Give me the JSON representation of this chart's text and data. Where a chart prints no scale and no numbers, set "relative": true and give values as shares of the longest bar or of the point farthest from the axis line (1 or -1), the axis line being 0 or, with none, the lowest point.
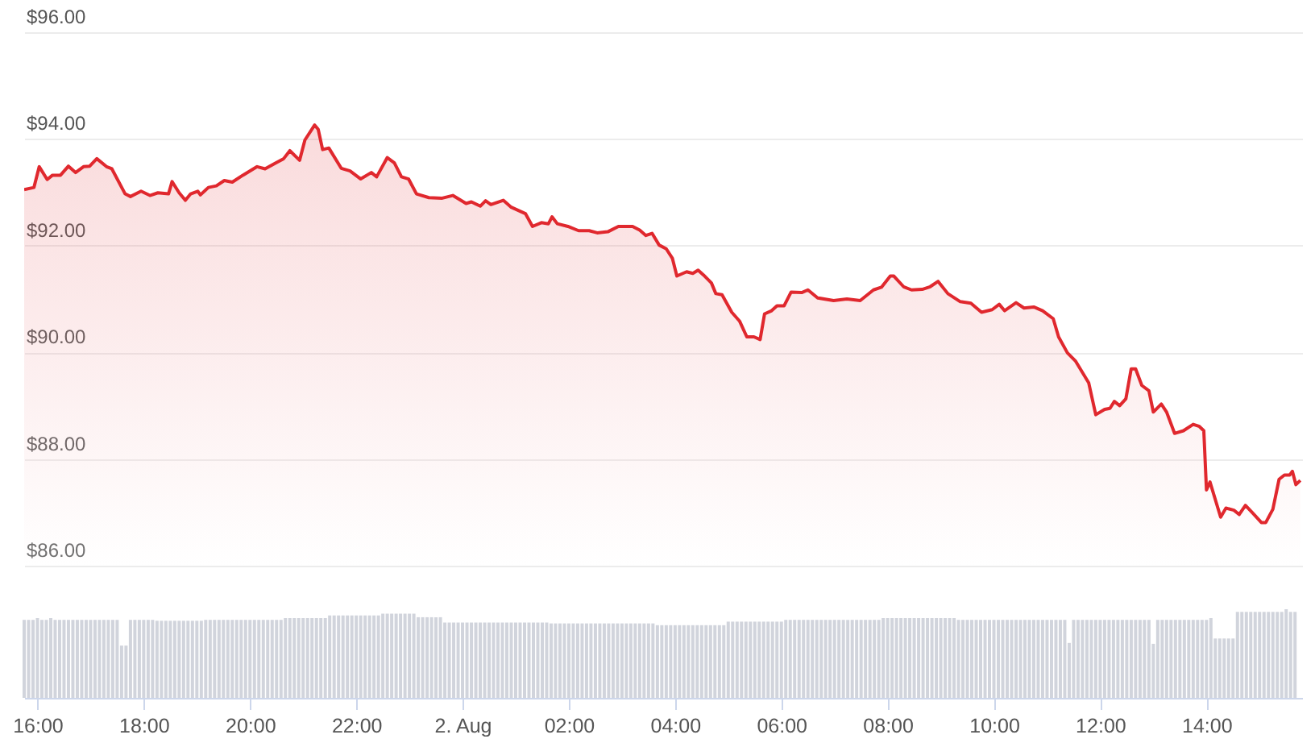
{
  "chart_data": [
    {
      "type": "area",
      "color": "#e0282e",
      "xlim": [
        "--08-01T15:45",
        "--08-02T15:48"
      ],
      "ylim": [
        86,
        96
      ],
      "yticks": [
        {
          "value": 96,
          "label": "$96.00"
        },
        {
          "value": 94,
          "label": "$94.00"
        },
        {
          "value": 92,
          "label": "$92.00"
        },
        {
          "value": 90,
          "label": "$90.00"
        },
        {
          "value": 88,
          "label": "$88.00"
        },
        {
          "value": 86,
          "label": "$86.00"
        }
      ],
      "grid": "y",
      "tick_labels": "y",
      "x": [
        "--08-01T15:45",
        "--08-01T15:56",
        "--08-01T16:02",
        "--08-01T16:11",
        "--08-01T16:17",
        "--08-01T16:26",
        "--08-01T16:35",
        "--08-01T16:43",
        "--08-01T16:52",
        "--08-01T16:59",
        "--08-01T17:07",
        "--08-01T17:18",
        "--08-01T17:24",
        "--08-01T17:39",
        "--08-01T17:45",
        "--08-01T17:57",
        "--08-01T18:07",
        "--08-01T18:16",
        "--08-01T18:28",
        "--08-01T18:32",
        "--08-01T18:40",
        "--08-01T18:47",
        "--08-01T18:53",
        "--08-01T19:01",
        "--08-01T19:04",
        "--08-01T19:13",
        "--08-01T19:22",
        "--08-01T19:31",
        "--08-01T19:40",
        "--08-01T19:52",
        "--08-01T20:08",
        "--08-01T20:17",
        "--08-01T20:29",
        "--08-01T20:38",
        "--08-01T20:45",
        "--08-01T20:56",
        "--08-01T21:02",
        "--08-01T21:13",
        "--08-01T21:17",
        "--08-01T21:22",
        "--08-01T21:29",
        "--08-01T21:43",
        "--08-01T21:53",
        "--08-01T22:05",
        "--08-01T22:17",
        "--08-01T22:23",
        "--08-01T22:35",
        "--08-01T22:43",
        "--08-01T22:51",
        "--08-01T22:59",
        "--08-01T23:08",
        "--08-01T23:22",
        "--08-01T23:37",
        "--08-01T23:49",
        "--08-02T00:04",
        "--08-02T00:10",
        "--08-02T00:20",
        "--08-02T00:26",
        "--08-02T00:32",
        "--08-02T00:46",
        "--08-02T00:55",
        "--08-02T01:11",
        "--08-02T01:19",
        "--08-02T01:29",
        "--08-02T01:37",
        "--08-02T01:41",
        "--08-02T01:47",
        "--08-02T01:59",
        "--08-02T02:11",
        "--08-02T02:23",
        "--08-02T02:32",
        "--08-02T02:44",
        "--08-02T02:56",
        "--08-02T03:12",
        "--08-02T03:20",
        "--08-02T03:27",
        "--08-02T03:34",
        "--08-02T03:42",
        "--08-02T03:50",
        "--08-02T03:57",
        "--08-02T04:02",
        "--08-02T04:13",
        "--08-02T04:20",
        "--08-02T04:26",
        "--08-02T04:32",
        "--08-02T04:41",
        "--08-02T04:46",
        "--08-02T04:53",
        "--08-02T05:04",
        "--08-02T05:13",
        "--08-02T05:21",
        "--08-02T05:29",
        "--08-02T05:36",
        "--08-02T05:41",
        "--08-02T05:49",
        "--08-02T05:55",
        "--08-02T06:03",
        "--08-02T06:11",
        "--08-02T06:23",
        "--08-02T06:30",
        "--08-02T06:41",
        "--08-02T06:59",
        "--08-02T07:14",
        "--08-02T07:29",
        "--08-02T07:44",
        "--08-02T07:53",
        "--08-02T08:03",
        "--08-02T08:07",
        "--08-02T08:18",
        "--08-02T08:27",
        "--08-02T08:39",
        "--08-02T08:48",
        "--08-02T08:57",
        "--08-02T09:08",
        "--08-02T09:22",
        "--08-02T09:34",
        "--08-02T09:46",
        "--08-02T09:58",
        "--08-02T10:06",
        "--08-02T10:12",
        "--08-02T10:25",
        "--08-02T10:34",
        "--08-02T10:45",
        "--08-02T10:55",
        "--08-02T11:07",
        "--08-02T11:13",
        "--08-02T11:23",
        "--08-02T11:32",
        "--08-02T11:47",
        "--08-02T11:55",
        "--08-02T12:05",
        "--08-02T12:11",
        "--08-02T12:16",
        "--08-02T12:22",
        "--08-02T12:29",
        "--08-02T12:35",
        "--08-02T12:40",
        "--08-02T12:47",
        "--08-02T12:55",
        "--08-02T13:00",
        "--08-02T13:09",
        "--08-02T13:15",
        "--08-02T13:24",
        "--08-02T13:34",
        "--08-02T13:45",
        "--08-02T13:52",
        "--08-02T13:57",
        "--08-02T14:00",
        "--08-02T14:04",
        "--08-02T14:16",
        "--08-02T14:22",
        "--08-02T14:31",
        "--08-02T14:37",
        "--08-02T14:44",
        "--08-02T14:52",
        "--08-02T15:02",
        "--08-02T15:07",
        "--08-02T15:15",
        "--08-02T15:22",
        "--08-02T15:28",
        "--08-02T15:34",
        "--08-02T15:37",
        "--08-02T15:41",
        "--08-02T15:46"
      ],
      "values": [
        93.05,
        93.09,
        93.48,
        93.24,
        93.32,
        93.32,
        93.49,
        93.37,
        93.48,
        93.49,
        93.63,
        93.48,
        93.44,
        92.97,
        92.92,
        93.02,
        92.94,
        92.99,
        92.97,
        93.2,
        92.99,
        92.85,
        92.97,
        93.02,
        92.95,
        93.09,
        93.12,
        93.22,
        93.19,
        93.32,
        93.48,
        93.44,
        93.55,
        93.63,
        93.78,
        93.6,
        93.98,
        94.26,
        94.18,
        93.8,
        93.83,
        93.45,
        93.4,
        93.25,
        93.37,
        93.29,
        93.65,
        93.55,
        93.29,
        93.25,
        92.97,
        92.9,
        92.89,
        92.94,
        92.79,
        92.82,
        92.74,
        92.84,
        92.77,
        92.85,
        92.72,
        92.6,
        92.36,
        92.43,
        92.41,
        92.54,
        92.41,
        92.36,
        92.28,
        92.28,
        92.24,
        92.26,
        92.36,
        92.36,
        92.29,
        92.19,
        92.23,
        92.01,
        91.94,
        91.76,
        91.43,
        91.51,
        91.48,
        91.54,
        91.45,
        91.3,
        91.1,
        91.08,
        90.75,
        90.58,
        90.29,
        90.29,
        90.24,
        90.72,
        90.78,
        90.87,
        90.87,
        91.13,
        91.12,
        91.17,
        91.02,
        90.97,
        91,
        90.97,
        91.17,
        91.22,
        91.43,
        91.43,
        91.23,
        91.17,
        91.18,
        91.23,
        91.33,
        91.1,
        90.95,
        90.92,
        90.75,
        90.8,
        90.9,
        90.78,
        90.93,
        90.83,
        90.85,
        90.78,
        90.63,
        90.29,
        89.99,
        89.84,
        89.43,
        88.83,
        88.93,
        88.95,
        89.08,
        89,
        89.13,
        89.69,
        89.69,
        89.38,
        89.28,
        88.88,
        89.03,
        88.88,
        88.48,
        88.53,
        88.65,
        88.61,
        88.53,
        87.42,
        87.57,
        86.91,
        87.08,
        87.04,
        86.96,
        87.13,
        86.99,
        86.81,
        86.81,
        87.06,
        87.62,
        87.7,
        87.7,
        87.77,
        87.52,
        87.6
      ]
    },
    {
      "type": "bar",
      "relative": true,
      "color": "#d1d4dc",
      "xlim": [
        "--08-01T15:45",
        "--08-02T15:48"
      ],
      "xticks": [
        {
          "value": "--08-01T16:00",
          "label": "16:00"
        },
        {
          "value": "--08-01T18:00",
          "label": "18:00"
        },
        {
          "value": "--08-01T20:00",
          "label": "20:00"
        },
        {
          "value": "--08-01T22:00",
          "label": "22:00"
        },
        {
          "value": "--08-02T00:00",
          "label": "2. Aug"
        },
        {
          "value": "--08-02T02:00",
          "label": "02:00"
        },
        {
          "value": "--08-02T04:00",
          "label": "04:00"
        },
        {
          "value": "--08-02T06:00",
          "label": "06:00"
        },
        {
          "value": "--08-02T08:00",
          "label": "08:00"
        },
        {
          "value": "--08-02T10:00",
          "label": "10:00"
        },
        {
          "value": "--08-02T12:00",
          "label": "12:00"
        },
        {
          "value": "--08-02T14:00",
          "label": "14:00"
        }
      ],
      "x": [
        "--08-01T15:45",
        "--08-01T15:50",
        "--08-01T15:55",
        "--08-01T16:00",
        "--08-01T16:05",
        "--08-01T16:10",
        "--08-01T16:15",
        "--08-01T16:20",
        "--08-01T16:25",
        "--08-01T16:30",
        "--08-01T16:35",
        "--08-01T16:40",
        "--08-01T16:45",
        "--08-01T16:50",
        "--08-01T16:55",
        "--08-01T17:00",
        "--08-01T17:05",
        "--08-01T17:10",
        "--08-01T17:15",
        "--08-01T17:20",
        "--08-01T17:25",
        "--08-01T17:30",
        "--08-01T17:35",
        "--08-01T17:40",
        "--08-01T17:45",
        "--08-01T17:50",
        "--08-01T17:55",
        "--08-01T18:00",
        "--08-01T18:05",
        "--08-01T18:10",
        "--08-01T18:15",
        "--08-01T18:20",
        "--08-01T18:25",
        "--08-01T18:30",
        "--08-01T18:35",
        "--08-01T18:40",
        "--08-01T18:45",
        "--08-01T18:50",
        "--08-01T18:55",
        "--08-01T19:00",
        "--08-01T19:05",
        "--08-01T19:10",
        "--08-01T19:15",
        "--08-01T19:20",
        "--08-01T19:25",
        "--08-01T19:30",
        "--08-01T19:35",
        "--08-01T19:40",
        "--08-01T19:45",
        "--08-01T19:50",
        "--08-01T19:55",
        "--08-01T20:00",
        "--08-01T20:05",
        "--08-01T20:10",
        "--08-01T20:15",
        "--08-01T20:20",
        "--08-01T20:25",
        "--08-01T20:30",
        "--08-01T20:35",
        "--08-01T20:40",
        "--08-01T20:45",
        "--08-01T20:50",
        "--08-01T20:55",
        "--08-01T21:00",
        "--08-01T21:05",
        "--08-01T21:10",
        "--08-01T21:15",
        "--08-01T21:20",
        "--08-01T21:25",
        "--08-01T21:30",
        "--08-01T21:35",
        "--08-01T21:40",
        "--08-01T21:45",
        "--08-01T21:50",
        "--08-01T21:55",
        "--08-01T22:00",
        "--08-01T22:05",
        "--08-01T22:10",
        "--08-01T22:15",
        "--08-01T22:20",
        "--08-01T22:25",
        "--08-01T22:30",
        "--08-01T22:35",
        "--08-01T22:40",
        "--08-01T22:45",
        "--08-01T22:50",
        "--08-01T22:55",
        "--08-01T23:00",
        "--08-01T23:05",
        "--08-01T23:10",
        "--08-01T23:15",
        "--08-01T23:20",
        "--08-01T23:25",
        "--08-01T23:30",
        "--08-01T23:35",
        "--08-01T23:40",
        "--08-01T23:45",
        "--08-01T23:50",
        "--08-01T23:55",
        "--08-02T00:00",
        "--08-02T00:05",
        "--08-02T00:10",
        "--08-02T00:15",
        "--08-02T00:20",
        "--08-02T00:25",
        "--08-02T00:30",
        "--08-02T00:35",
        "--08-02T00:40",
        "--08-02T00:45",
        "--08-02T00:50",
        "--08-02T00:55",
        "--08-02T01:00",
        "--08-02T01:05",
        "--08-02T01:10",
        "--08-02T01:15",
        "--08-02T01:20",
        "--08-02T01:25",
        "--08-02T01:30",
        "--08-02T01:35",
        "--08-02T01:40",
        "--08-02T01:45",
        "--08-02T01:50",
        "--08-02T01:55",
        "--08-02T02:00",
        "--08-02T02:05",
        "--08-02T02:10",
        "--08-02T02:15",
        "--08-02T02:20",
        "--08-02T02:25",
        "--08-02T02:30",
        "--08-02T02:35",
        "--08-02T02:40",
        "--08-02T02:45",
        "--08-02T02:50",
        "--08-02T02:55",
        "--08-02T03:00",
        "--08-02T03:05",
        "--08-02T03:10",
        "--08-02T03:15",
        "--08-02T03:20",
        "--08-02T03:25",
        "--08-02T03:30",
        "--08-02T03:35",
        "--08-02T03:40",
        "--08-02T03:45",
        "--08-02T03:50",
        "--08-02T03:55",
        "--08-02T04:00",
        "--08-02T04:05",
        "--08-02T04:10",
        "--08-02T04:15",
        "--08-02T04:20",
        "--08-02T04:25",
        "--08-02T04:30",
        "--08-02T04:35",
        "--08-02T04:40",
        "--08-02T04:45",
        "--08-02T04:50",
        "--08-02T04:55",
        "--08-02T05:00",
        "--08-02T05:05",
        "--08-02T05:10",
        "--08-02T05:15",
        "--08-02T05:20",
        "--08-02T05:25",
        "--08-02T05:30",
        "--08-02T05:35",
        "--08-02T05:40",
        "--08-02T05:45",
        "--08-02T05:50",
        "--08-02T05:55",
        "--08-02T06:00",
        "--08-02T06:05",
        "--08-02T06:10",
        "--08-02T06:15",
        "--08-02T06:20",
        "--08-02T06:25",
        "--08-02T06:30",
        "--08-02T06:35",
        "--08-02T06:40",
        "--08-02T06:45",
        "--08-02T06:50",
        "--08-02T06:55",
        "--08-02T07:00",
        "--08-02T07:05",
        "--08-02T07:10",
        "--08-02T07:15",
        "--08-02T07:20",
        "--08-02T07:25",
        "--08-02T07:30",
        "--08-02T07:35",
        "--08-02T07:40",
        "--08-02T07:45",
        "--08-02T07:50",
        "--08-02T07:55",
        "--08-02T08:00",
        "--08-02T08:05",
        "--08-02T08:10",
        "--08-02T08:15",
        "--08-02T08:20",
        "--08-02T08:25",
        "--08-02T08:30",
        "--08-02T08:35",
        "--08-02T08:40",
        "--08-02T08:45",
        "--08-02T08:50",
        "--08-02T08:55",
        "--08-02T09:00",
        "--08-02T09:05",
        "--08-02T09:10",
        "--08-02T09:15",
        "--08-02T09:20",
        "--08-02T09:25",
        "--08-02T09:30",
        "--08-02T09:35",
        "--08-02T09:40",
        "--08-02T09:45",
        "--08-02T09:50",
        "--08-02T09:55",
        "--08-02T10:00",
        "--08-02T10:05",
        "--08-02T10:10",
        "--08-02T10:15",
        "--08-02T10:20",
        "--08-02T10:25",
        "--08-02T10:30",
        "--08-02T10:35",
        "--08-02T10:40",
        "--08-02T10:45",
        "--08-02T10:50",
        "--08-02T10:55",
        "--08-02T11:00",
        "--08-02T11:05",
        "--08-02T11:10",
        "--08-02T11:15",
        "--08-02T11:20",
        "--08-02T11:25",
        "--08-02T11:30",
        "--08-02T11:35",
        "--08-02T11:40",
        "--08-02T11:45",
        "--08-02T11:50",
        "--08-02T11:55",
        "--08-02T12:00",
        "--08-02T12:05",
        "--08-02T12:10",
        "--08-02T12:15",
        "--08-02T12:20",
        "--08-02T12:25",
        "--08-02T12:30",
        "--08-02T12:35",
        "--08-02T12:40",
        "--08-02T12:45",
        "--08-02T12:50",
        "--08-02T12:55",
        "--08-02T13:00",
        "--08-02T13:05",
        "--08-02T13:10",
        "--08-02T13:15",
        "--08-02T13:20",
        "--08-02T13:25",
        "--08-02T13:30",
        "--08-02T13:35",
        "--08-02T13:40",
        "--08-02T13:45",
        "--08-02T13:50",
        "--08-02T13:55",
        "--08-02T14:00",
        "--08-02T14:05",
        "--08-02T14:10",
        "--08-02T14:15",
        "--08-02T14:20",
        "--08-02T14:25",
        "--08-02T14:30",
        "--08-02T14:35",
        "--08-02T14:40",
        "--08-02T14:45",
        "--08-02T14:50",
        "--08-02T14:55",
        "--08-02T15:00",
        "--08-02T15:05",
        "--08-02T15:10",
        "--08-02T15:15",
        "--08-02T15:20",
        "--08-02T15:25",
        "--08-02T15:30",
        "--08-02T15:35",
        "--08-02T15:40"
      ],
      "values": [
        0.88,
        0.88,
        0.88,
        0.9,
        0.88,
        0.88,
        0.9,
        0.88,
        0.88,
        0.88,
        0.88,
        0.88,
        0.88,
        0.88,
        0.88,
        0.88,
        0.88,
        0.88,
        0.88,
        0.88,
        0.88,
        0.88,
        0.59,
        0.59,
        0.88,
        0.88,
        0.88,
        0.88,
        0.88,
        0.88,
        0.87,
        0.87,
        0.87,
        0.87,
        0.87,
        0.87,
        0.87,
        0.87,
        0.87,
        0.87,
        0.87,
        0.88,
        0.88,
        0.88,
        0.88,
        0.88,
        0.88,
        0.88,
        0.88,
        0.88,
        0.88,
        0.88,
        0.88,
        0.88,
        0.88,
        0.88,
        0.88,
        0.88,
        0.88,
        0.9,
        0.9,
        0.9,
        0.9,
        0.9,
        0.9,
        0.9,
        0.9,
        0.9,
        0.9,
        0.93,
        0.93,
        0.93,
        0.93,
        0.93,
        0.93,
        0.93,
        0.93,
        0.93,
        0.93,
        0.93,
        0.93,
        0.95,
        0.95,
        0.95,
        0.95,
        0.95,
        0.95,
        0.95,
        0.95,
        0.91,
        0.91,
        0.91,
        0.91,
        0.91,
        0.91,
        0.85,
        0.85,
        0.85,
        0.85,
        0.85,
        0.85,
        0.85,
        0.85,
        0.85,
        0.85,
        0.85,
        0.85,
        0.85,
        0.85,
        0.85,
        0.85,
        0.85,
        0.85,
        0.85,
        0.85,
        0.85,
        0.85,
        0.85,
        0.85,
        0.84,
        0.84,
        0.84,
        0.84,
        0.84,
        0.84,
        0.84,
        0.84,
        0.84,
        0.84,
        0.84,
        0.84,
        0.84,
        0.84,
        0.84,
        0.84,
        0.84,
        0.84,
        0.84,
        0.84,
        0.84,
        0.84,
        0.84,
        0.84,
        0.82,
        0.82,
        0.82,
        0.82,
        0.82,
        0.82,
        0.82,
        0.82,
        0.82,
        0.82,
        0.82,
        0.82,
        0.82,
        0.82,
        0.82,
        0.82,
        0.86,
        0.86,
        0.86,
        0.86,
        0.86,
        0.86,
        0.86,
        0.86,
        0.86,
        0.86,
        0.86,
        0.86,
        0.86,
        0.88,
        0.88,
        0.88,
        0.88,
        0.88,
        0.88,
        0.88,
        0.88,
        0.88,
        0.88,
        0.88,
        0.88,
        0.88,
        0.88,
        0.88,
        0.88,
        0.88,
        0.88,
        0.88,
        0.88,
        0.88,
        0.88,
        0.9,
        0.9,
        0.9,
        0.9,
        0.9,
        0.9,
        0.9,
        0.9,
        0.9,
        0.9,
        0.9,
        0.9,
        0.9,
        0.9,
        0.9,
        0.9,
        0.9,
        0.88,
        0.88,
        0.88,
        0.88,
        0.88,
        0.88,
        0.88,
        0.88,
        0.88,
        0.88,
        0.88,
        0.88,
        0.88,
        0.88,
        0.88,
        0.88,
        0.88,
        0.88,
        0.88,
        0.88,
        0.88,
        0.88,
        0.88,
        0.88,
        0.88,
        0.62,
        0.88,
        0.88,
        0.88,
        0.88,
        0.88,
        0.88,
        0.88,
        0.88,
        0.88,
        0.88,
        0.88,
        0.88,
        0.88,
        0.88,
        0.88,
        0.88,
        0.88,
        0.88,
        0.61,
        0.88,
        0.88,
        0.88,
        0.88,
        0.88,
        0.88,
        0.88,
        0.88,
        0.88,
        0.88,
        0.88,
        0.88,
        0.9,
        0.67,
        0.67,
        0.67,
        0.67,
        0.67,
        0.97,
        0.97,
        0.97,
        0.97,
        0.97,
        0.97,
        0.97,
        0.97,
        0.97,
        0.97,
        0.97,
        1,
        0.97,
        0.97
      ]
    }
  ]
}
